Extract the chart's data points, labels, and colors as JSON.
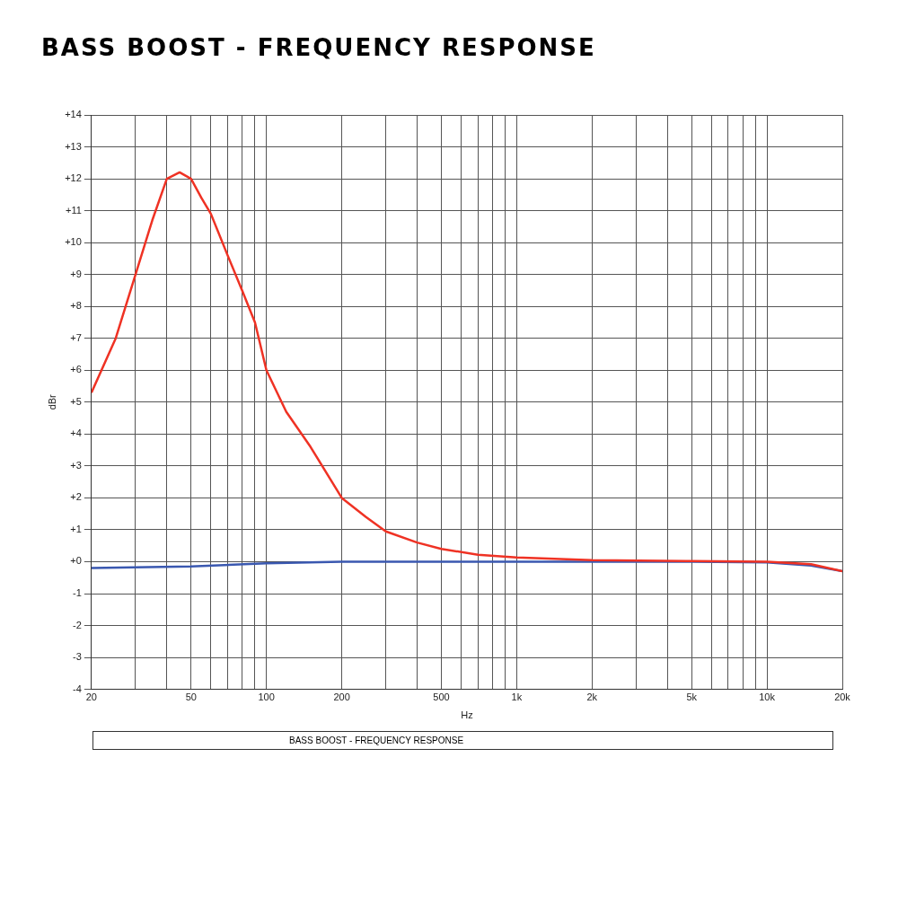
{
  "chart_data": {
    "type": "line",
    "title": "BASS BOOST - FREQUENCY RESPONSE",
    "xlabel": "Hz",
    "ylabel": "dBr",
    "annotations": [
      "BASS BOOST  -  FREQUENCY RESPONSE"
    ],
    "log": "x",
    "grid": true,
    "legend": false,
    "marker": "none",
    "line_style": "solid",
    "xlim": [
      20,
      20000
    ],
    "ylim": [
      -4,
      14
    ],
    "xticks": [
      20,
      {
        "value": 30,
        "label": null
      },
      {
        "value": 40,
        "label": null
      },
      50,
      {
        "value": 60,
        "label": null
      },
      {
        "value": 70,
        "label": null
      },
      {
        "value": 80,
        "label": null
      },
      {
        "value": 90,
        "label": null
      },
      100,
      200,
      {
        "value": 300,
        "label": null
      },
      {
        "value": 400,
        "label": null
      },
      500,
      {
        "value": 600,
        "label": null
      },
      {
        "value": 700,
        "label": null
      },
      {
        "value": 800,
        "label": null
      },
      {
        "value": 900,
        "label": null
      },
      {
        "value": 1000,
        "label": "1k"
      },
      {
        "value": 2000,
        "label": "2k"
      },
      {
        "value": 3000,
        "label": null
      },
      {
        "value": 4000,
        "label": null
      },
      {
        "value": 5000,
        "label": "5k"
      },
      {
        "value": 6000,
        "label": null
      },
      {
        "value": 7000,
        "label": null
      },
      {
        "value": 8000,
        "label": null
      },
      {
        "value": 9000,
        "label": null
      },
      {
        "value": 10000,
        "label": "10k"
      },
      {
        "value": 20000,
        "label": "20k"
      }
    ],
    "yticks": [
      -4,
      -3,
      -2,
      -1,
      {
        "value": 0,
        "label": "+0"
      },
      {
        "value": 1,
        "label": "+1"
      },
      {
        "value": 2,
        "label": "+2"
      },
      {
        "value": 3,
        "label": "+3"
      },
      {
        "value": 4,
        "label": "+4"
      },
      {
        "value": 5,
        "label": "+5"
      },
      {
        "value": 6,
        "label": "+6"
      },
      {
        "value": 7,
        "label": "+7"
      },
      {
        "value": 8,
        "label": "+8"
      },
      {
        "value": 9,
        "label": "+9"
      },
      {
        "value": 10,
        "label": "+10"
      },
      {
        "value": 11,
        "label": "+11"
      },
      {
        "value": 12,
        "label": "+12"
      },
      {
        "value": 13,
        "label": "+13"
      },
      {
        "value": 14,
        "label": "+14"
      }
    ],
    "series": [
      {
        "color": "#ef3224",
        "x": [
          20,
          25,
          30,
          35,
          40,
          45,
          50,
          55,
          60,
          70,
          80,
          90,
          100,
          120,
          150,
          200,
          250,
          300,
          400,
          500,
          700,
          1000,
          2000,
          5000,
          10000,
          15000,
          20000
        ],
        "values": [
          5.3,
          7.0,
          9.0,
          10.7,
          12.0,
          12.2,
          12.0,
          11.4,
          10.9,
          9.6,
          8.5,
          7.5,
          6.0,
          4.7,
          3.6,
          2.0,
          1.4,
          0.95,
          0.6,
          0.4,
          0.22,
          0.13,
          0.05,
          0.02,
          0,
          -0.08,
          -0.3
        ]
      },
      {
        "color": "#3a58b0",
        "x": [
          20,
          50,
          100,
          200,
          500,
          5000,
          10000,
          15000,
          20000
        ],
        "values": [
          -0.2,
          -0.15,
          -0.05,
          0,
          0,
          0,
          -0.02,
          -0.12,
          -0.3
        ]
      }
    ]
  }
}
